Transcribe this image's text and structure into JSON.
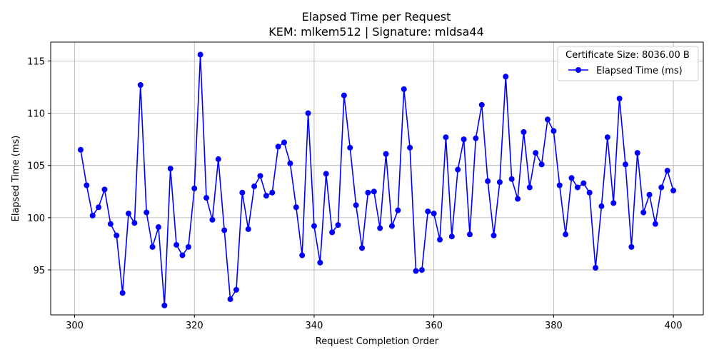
{
  "chart_data": {
    "type": "line",
    "title": "Elapsed Time per Request",
    "subtitle": "KEM: mlkem512 | Signature: mldsa44",
    "xlabel": "Request Completion Order",
    "ylabel": "Elapsed Time (ms)",
    "xlim": [
      296,
      405
    ],
    "ylim": [
      90.7,
      116.8
    ],
    "xticks": [
      300,
      320,
      340,
      360,
      380,
      400
    ],
    "yticks": [
      95,
      100,
      105,
      110,
      115
    ],
    "grid": true,
    "legend": {
      "placement": "top-right",
      "title": "Certificate Size: 8036.00 B",
      "entries": [
        "Elapsed Time (ms)"
      ]
    },
    "series": [
      {
        "name": "Elapsed Time (ms)",
        "color": "#0000ff",
        "x": [
          301,
          302,
          303,
          304,
          305,
          306,
          307,
          308,
          309,
          310,
          311,
          312,
          313,
          314,
          315,
          316,
          317,
          318,
          319,
          320,
          321,
          322,
          323,
          324,
          325,
          326,
          327,
          328,
          329,
          330,
          331,
          332,
          333,
          334,
          335,
          336,
          337,
          338,
          339,
          340,
          341,
          342,
          343,
          344,
          345,
          346,
          347,
          348,
          349,
          350,
          351,
          352,
          353,
          354,
          355,
          356,
          357,
          358,
          359,
          360,
          361,
          362,
          363,
          364,
          365,
          366,
          367,
          368,
          369,
          370,
          371,
          372,
          373,
          374,
          375,
          376,
          377,
          378,
          379,
          380,
          381,
          382,
          383,
          384,
          385,
          386,
          387,
          388,
          389,
          390,
          391,
          392,
          393,
          394,
          395,
          396,
          397,
          398,
          399,
          400
        ],
        "values": [
          106.5,
          103.1,
          100.2,
          101.0,
          102.7,
          99.4,
          98.3,
          92.8,
          100.4,
          99.5,
          112.7,
          100.5,
          97.2,
          99.1,
          91.6,
          104.7,
          97.4,
          96.4,
          97.2,
          102.8,
          115.6,
          101.9,
          99.8,
          105.6,
          98.8,
          92.2,
          93.1,
          102.4,
          98.9,
          103.0,
          104.0,
          102.1,
          102.4,
          106.8,
          107.2,
          105.2,
          101.0,
          96.4,
          110.0,
          99.2,
          95.7,
          104.2,
          98.6,
          99.3,
          111.7,
          106.7,
          101.2,
          97.1,
          102.4,
          102.5,
          99.0,
          106.1,
          99.2,
          100.7,
          112.3,
          106.7,
          94.9,
          95.0,
          100.6,
          100.4,
          97.9,
          107.7,
          98.2,
          104.6,
          107.5,
          98.4,
          107.6,
          110.8,
          103.5,
          98.3,
          103.4,
          113.5,
          103.7,
          101.8,
          108.2,
          102.9,
          106.2,
          105.1,
          109.4,
          108.3,
          103.1,
          98.4,
          103.8,
          102.9,
          103.3,
          102.4,
          95.2,
          101.1,
          107.7,
          101.4,
          111.4,
          105.1,
          97.2,
          106.2,
          100.5,
          102.2,
          99.4,
          102.9,
          104.5,
          102.6
        ]
      }
    ]
  }
}
